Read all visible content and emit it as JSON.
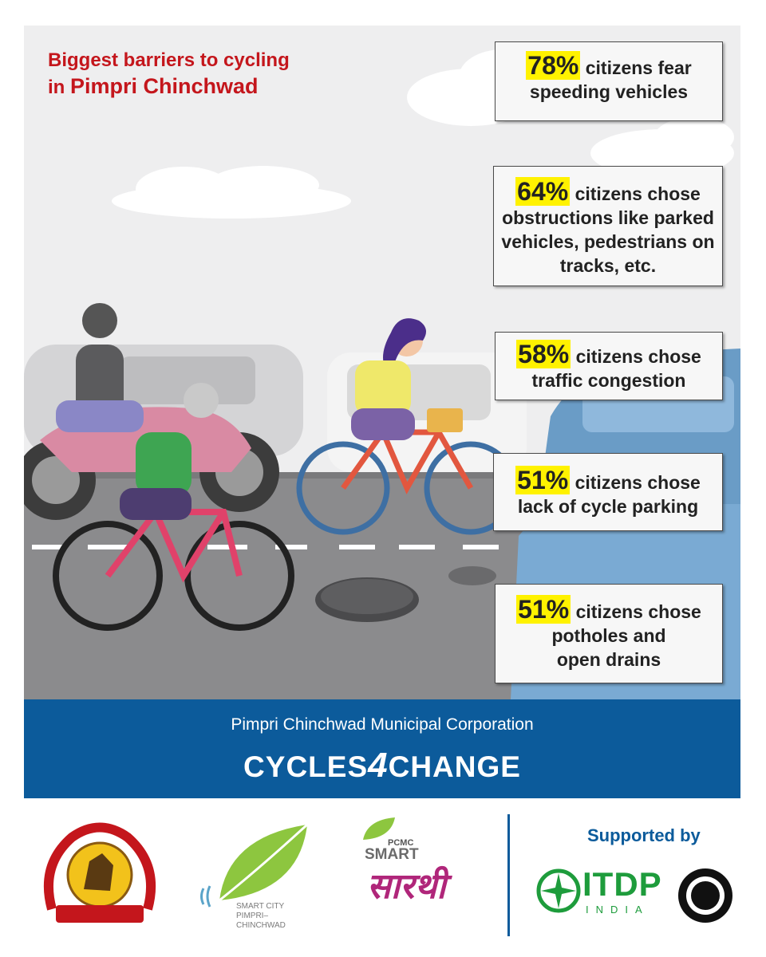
{
  "headline": {
    "line1": "Biggest barriers to cycling",
    "line2_prefix": "in",
    "line2_place": "Pimpri Chinchwad"
  },
  "stats": [
    {
      "pct": "78%",
      "lines": [
        "citizens fear",
        "speeding vehicles"
      ]
    },
    {
      "pct": "64%",
      "lines": [
        "citizens chose",
        "obstructions like parked",
        "vehicles, pedestrians on",
        "tracks, etc."
      ]
    },
    {
      "pct": "58%",
      "lines": [
        "citizens chose",
        "traffic congestion"
      ]
    },
    {
      "pct": "51%",
      "lines": [
        "citizens chose",
        "lack of cycle parking"
      ]
    },
    {
      "pct": "51%",
      "lines": [
        "citizens chose",
        "potholes and",
        "open drains"
      ]
    }
  ],
  "banner": {
    "org": "Pimpri Chinchwad Municipal Corporation",
    "brand_pre": "CYCLES",
    "brand_num": "4",
    "brand_post": "CHANGE"
  },
  "footer": {
    "supported_by": "Supported by",
    "smart_city": [
      "SMART CITY",
      "PIMPRI–",
      "CHINCHWAD"
    ],
    "sarthi_top": "PCMC",
    "sarthi_mid": "SMART",
    "sarthi_script": "सारथी",
    "itdp": "ITDP",
    "itdp_sub": "INDIA"
  },
  "colors": {
    "headline": "#c4161c",
    "highlight": "#fff200",
    "banner": "#0c5b9b",
    "road": "#8a8a8c",
    "itdp": "#1e9c3c",
    "sarthi": "#b0267a"
  },
  "icons": [
    "pcmc-seal-icon",
    "smart-city-leaf-icon",
    "sarthi-logo-icon",
    "itdp-logo-icon",
    "bycs-logo-icon"
  ]
}
